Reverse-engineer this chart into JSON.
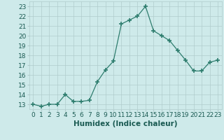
{
  "x": [
    0,
    1,
    2,
    3,
    4,
    5,
    6,
    7,
    8,
    9,
    10,
    11,
    12,
    13,
    14,
    15,
    16,
    17,
    18,
    19,
    20,
    21,
    22,
    23
  ],
  "y": [
    13,
    12.8,
    13,
    13,
    14,
    13.3,
    13.3,
    13.4,
    15.3,
    16.5,
    17.4,
    21.2,
    21.6,
    22,
    23,
    20.5,
    20,
    19.5,
    18.5,
    17.5,
    16.4,
    16.4,
    17.3,
    17.5
  ],
  "line_color": "#2e7d6e",
  "marker": "+",
  "marker_size": 4,
  "xlabel": "Humidex (Indice chaleur)",
  "xlim": [
    -0.5,
    23.5
  ],
  "ylim": [
    12.5,
    23.5
  ],
  "yticks": [
    13,
    14,
    15,
    16,
    17,
    18,
    19,
    20,
    21,
    22,
    23
  ],
  "xticks": [
    0,
    1,
    2,
    3,
    4,
    5,
    6,
    7,
    8,
    9,
    10,
    11,
    12,
    13,
    14,
    15,
    16,
    17,
    18,
    19,
    20,
    21,
    22,
    23
  ],
  "bg_color": "#ceeaea",
  "grid_color": "#b0cccc",
  "text_color": "#1a5a52",
  "tick_fontsize": 6.5,
  "xlabel_fontsize": 7.5
}
